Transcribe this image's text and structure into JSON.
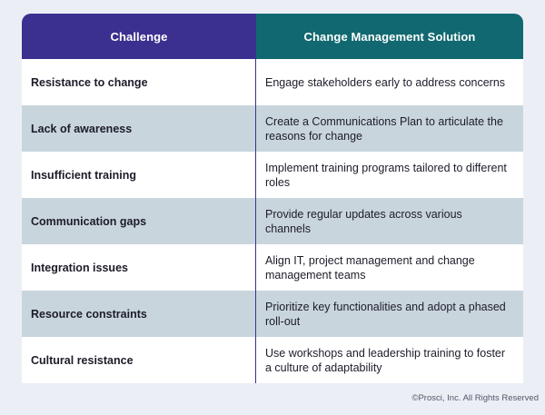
{
  "table": {
    "header": {
      "left": "Challenge",
      "right": "Change Management Solution"
    },
    "rows": [
      {
        "challenge": "Resistance to change",
        "solution": "Engage stakeholders early to address concerns"
      },
      {
        "challenge": "Lack of awareness",
        "solution": "Create a Communications Plan to articulate the reasons for change"
      },
      {
        "challenge": "Insufficient training",
        "solution": "Implement training programs tailored to different roles"
      },
      {
        "challenge": "Communication gaps",
        "solution": "Provide regular updates across various channels"
      },
      {
        "challenge": "Integration issues",
        "solution": "Align IT, project management and change management teams"
      },
      {
        "challenge": "Resource constraints",
        "solution": "Prioritize key functionalities and adopt a phased roll-out"
      },
      {
        "challenge": "Cultural resistance",
        "solution": "Use workshops and leadership training to foster a culture of adaptability"
      }
    ]
  },
  "footer": {
    "copyright": "©Prosci, Inc. All Rights Reserved"
  },
  "colors": {
    "challenge_header": "#3b2f8f",
    "solution_header": "#116870",
    "row_alt": "#c9d5dc",
    "background": "#eceef6"
  }
}
